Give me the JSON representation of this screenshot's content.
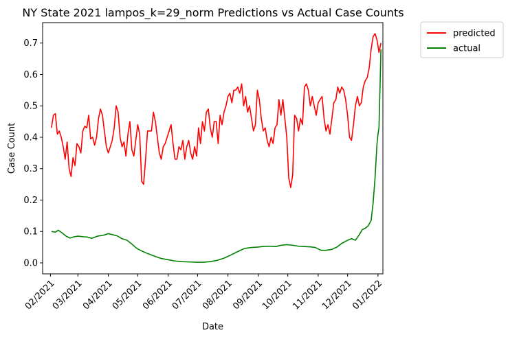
{
  "chart_data": {
    "type": "line",
    "title": "NY State 2021 lampos_k=29_norm Predictions vs Actual Case Counts",
    "xlabel": "Date",
    "ylabel": "Case Count",
    "x_ticks": [
      "02/2021",
      "03/2021",
      "04/2021",
      "05/2021",
      "06/2021",
      "07/2021",
      "08/2021",
      "09/2021",
      "10/2021",
      "11/2021",
      "12/2021",
      "01/2022"
    ],
    "y_ticks": [
      "0.0",
      "0.1",
      "0.2",
      "0.3",
      "0.4",
      "0.5",
      "0.6",
      "0.7"
    ],
    "xlim": [
      "2021-01-24",
      "2022-01-06"
    ],
    "ylim": [
      -0.035,
      0.765
    ],
    "grid": false,
    "legend_position": "outside top-right",
    "series": [
      {
        "name": "predicted",
        "color": "#ff0000",
        "points": [
          [
            "2021-02-02",
            0.43
          ],
          [
            "2021-02-04",
            0.47
          ],
          [
            "2021-02-06",
            0.475
          ],
          [
            "2021-02-08",
            0.41
          ],
          [
            "2021-02-10",
            0.42
          ],
          [
            "2021-02-12",
            0.4
          ],
          [
            "2021-02-14",
            0.37
          ],
          [
            "2021-02-16",
            0.33
          ],
          [
            "2021-02-18",
            0.385
          ],
          [
            "2021-02-20",
            0.3
          ],
          [
            "2021-02-22",
            0.275
          ],
          [
            "2021-02-24",
            0.335
          ],
          [
            "2021-02-26",
            0.31
          ],
          [
            "2021-02-28",
            0.38
          ],
          [
            "2021-03-02",
            0.37
          ],
          [
            "2021-03-04",
            0.35
          ],
          [
            "2021-03-06",
            0.42
          ],
          [
            "2021-03-08",
            0.435
          ],
          [
            "2021-03-10",
            0.43
          ],
          [
            "2021-03-12",
            0.47
          ],
          [
            "2021-03-14",
            0.395
          ],
          [
            "2021-03-16",
            0.4
          ],
          [
            "2021-03-18",
            0.375
          ],
          [
            "2021-03-20",
            0.4
          ],
          [
            "2021-03-22",
            0.46
          ],
          [
            "2021-03-24",
            0.49
          ],
          [
            "2021-03-26",
            0.47
          ],
          [
            "2021-03-28",
            0.42
          ],
          [
            "2021-03-30",
            0.37
          ],
          [
            "2021-04-01",
            0.35
          ],
          [
            "2021-04-03",
            0.37
          ],
          [
            "2021-04-05",
            0.39
          ],
          [
            "2021-04-07",
            0.43
          ],
          [
            "2021-04-09",
            0.5
          ],
          [
            "2021-04-11",
            0.48
          ],
          [
            "2021-04-13",
            0.4
          ],
          [
            "2021-04-15",
            0.37
          ],
          [
            "2021-04-17",
            0.385
          ],
          [
            "2021-04-19",
            0.34
          ],
          [
            "2021-04-21",
            0.41
          ],
          [
            "2021-04-23",
            0.45
          ],
          [
            "2021-04-25",
            0.36
          ],
          [
            "2021-04-27",
            0.34
          ],
          [
            "2021-04-29",
            0.39
          ],
          [
            "2021-05-01",
            0.44
          ],
          [
            "2021-05-03",
            0.41
          ],
          [
            "2021-05-05",
            0.26
          ],
          [
            "2021-05-07",
            0.25
          ],
          [
            "2021-05-09",
            0.33
          ],
          [
            "2021-05-11",
            0.42
          ],
          [
            "2021-05-13",
            0.42
          ],
          [
            "2021-05-15",
            0.42
          ],
          [
            "2021-05-17",
            0.48
          ],
          [
            "2021-05-19",
            0.45
          ],
          [
            "2021-05-21",
            0.4
          ],
          [
            "2021-05-23",
            0.35
          ],
          [
            "2021-05-25",
            0.33
          ],
          [
            "2021-05-27",
            0.37
          ],
          [
            "2021-05-29",
            0.38
          ],
          [
            "2021-05-31",
            0.4
          ],
          [
            "2021-06-02",
            0.42
          ],
          [
            "2021-06-04",
            0.44
          ],
          [
            "2021-06-06",
            0.38
          ],
          [
            "2021-06-08",
            0.33
          ],
          [
            "2021-06-10",
            0.33
          ],
          [
            "2021-06-12",
            0.37
          ],
          [
            "2021-06-14",
            0.36
          ],
          [
            "2021-06-16",
            0.39
          ],
          [
            "2021-06-18",
            0.33
          ],
          [
            "2021-06-20",
            0.37
          ],
          [
            "2021-06-22",
            0.39
          ],
          [
            "2021-06-24",
            0.35
          ],
          [
            "2021-06-26",
            0.33
          ],
          [
            "2021-06-28",
            0.37
          ],
          [
            "2021-06-30",
            0.34
          ],
          [
            "2021-07-02",
            0.43
          ],
          [
            "2021-07-04",
            0.38
          ],
          [
            "2021-07-06",
            0.45
          ],
          [
            "2021-07-08",
            0.42
          ],
          [
            "2021-07-10",
            0.48
          ],
          [
            "2021-07-12",
            0.49
          ],
          [
            "2021-07-14",
            0.43
          ],
          [
            "2021-07-16",
            0.4
          ],
          [
            "2021-07-18",
            0.45
          ],
          [
            "2021-07-20",
            0.45
          ],
          [
            "2021-07-22",
            0.38
          ],
          [
            "2021-07-24",
            0.47
          ],
          [
            "2021-07-26",
            0.44
          ],
          [
            "2021-07-28",
            0.48
          ],
          [
            "2021-07-30",
            0.5
          ],
          [
            "2021-08-01",
            0.53
          ],
          [
            "2021-08-03",
            0.54
          ],
          [
            "2021-08-05",
            0.51
          ],
          [
            "2021-08-07",
            0.55
          ],
          [
            "2021-08-09",
            0.55
          ],
          [
            "2021-08-11",
            0.56
          ],
          [
            "2021-08-13",
            0.54
          ],
          [
            "2021-08-15",
            0.57
          ],
          [
            "2021-08-17",
            0.5
          ],
          [
            "2021-08-19",
            0.53
          ],
          [
            "2021-08-21",
            0.48
          ],
          [
            "2021-08-23",
            0.5
          ],
          [
            "2021-08-25",
            0.46
          ],
          [
            "2021-08-27",
            0.42
          ],
          [
            "2021-08-29",
            0.44
          ],
          [
            "2021-08-31",
            0.55
          ],
          [
            "2021-09-02",
            0.52
          ],
          [
            "2021-09-04",
            0.46
          ],
          [
            "2021-09-06",
            0.42
          ],
          [
            "2021-09-08",
            0.43
          ],
          [
            "2021-09-10",
            0.39
          ],
          [
            "2021-09-12",
            0.37
          ],
          [
            "2021-09-14",
            0.4
          ],
          [
            "2021-09-16",
            0.38
          ],
          [
            "2021-09-18",
            0.43
          ],
          [
            "2021-09-20",
            0.44
          ],
          [
            "2021-09-22",
            0.52
          ],
          [
            "2021-09-24",
            0.47
          ],
          [
            "2021-09-26",
            0.52
          ],
          [
            "2021-09-28",
            0.46
          ],
          [
            "2021-09-30",
            0.4
          ],
          [
            "2021-10-02",
            0.27
          ],
          [
            "2021-10-04",
            0.24
          ],
          [
            "2021-10-06",
            0.28
          ],
          [
            "2021-10-08",
            0.47
          ],
          [
            "2021-10-10",
            0.46
          ],
          [
            "2021-10-12",
            0.42
          ],
          [
            "2021-10-14",
            0.46
          ],
          [
            "2021-10-16",
            0.44
          ],
          [
            "2021-10-18",
            0.56
          ],
          [
            "2021-10-20",
            0.57
          ],
          [
            "2021-10-22",
            0.55
          ],
          [
            "2021-10-24",
            0.5
          ],
          [
            "2021-10-26",
            0.53
          ],
          [
            "2021-10-28",
            0.5
          ],
          [
            "2021-10-30",
            0.47
          ],
          [
            "2021-11-01",
            0.51
          ],
          [
            "2021-11-03",
            0.52
          ],
          [
            "2021-11-05",
            0.53
          ],
          [
            "2021-11-07",
            0.46
          ],
          [
            "2021-11-09",
            0.42
          ],
          [
            "2021-11-11",
            0.44
          ],
          [
            "2021-11-13",
            0.41
          ],
          [
            "2021-11-15",
            0.46
          ],
          [
            "2021-11-17",
            0.51
          ],
          [
            "2021-11-19",
            0.52
          ],
          [
            "2021-11-21",
            0.56
          ],
          [
            "2021-11-23",
            0.54
          ],
          [
            "2021-11-25",
            0.56
          ],
          [
            "2021-11-27",
            0.55
          ],
          [
            "2021-11-29",
            0.52
          ],
          [
            "2021-12-01",
            0.47
          ],
          [
            "2021-12-03",
            0.4
          ],
          [
            "2021-12-05",
            0.39
          ],
          [
            "2021-12-07",
            0.44
          ],
          [
            "2021-12-09",
            0.5
          ],
          [
            "2021-12-11",
            0.53
          ],
          [
            "2021-12-13",
            0.5
          ],
          [
            "2021-12-15",
            0.51
          ],
          [
            "2021-12-17",
            0.56
          ],
          [
            "2021-12-19",
            0.58
          ],
          [
            "2021-12-21",
            0.59
          ],
          [
            "2021-12-23",
            0.62
          ],
          [
            "2021-12-25",
            0.68
          ],
          [
            "2021-12-27",
            0.72
          ],
          [
            "2021-12-29",
            0.73
          ],
          [
            "2021-12-31",
            0.71
          ],
          [
            "2022-01-02",
            0.67
          ],
          [
            "2022-01-04",
            0.7
          ]
        ]
      },
      {
        "name": "actual",
        "color": "#008000",
        "points": [
          [
            "2021-02-02",
            0.1
          ],
          [
            "2021-02-06",
            0.098
          ],
          [
            "2021-02-09",
            0.104
          ],
          [
            "2021-02-13",
            0.095
          ],
          [
            "2021-02-17",
            0.085
          ],
          [
            "2021-02-21",
            0.079
          ],
          [
            "2021-02-25",
            0.083
          ],
          [
            "2021-03-01",
            0.085
          ],
          [
            "2021-03-07",
            0.083
          ],
          [
            "2021-03-11",
            0.082
          ],
          [
            "2021-03-15",
            0.078
          ],
          [
            "2021-03-21",
            0.085
          ],
          [
            "2021-03-27",
            0.088
          ],
          [
            "2021-04-01",
            0.093
          ],
          [
            "2021-04-05",
            0.09
          ],
          [
            "2021-04-10",
            0.086
          ],
          [
            "2021-04-15",
            0.077
          ],
          [
            "2021-04-20",
            0.072
          ],
          [
            "2021-04-25",
            0.06
          ],
          [
            "2021-04-30",
            0.046
          ],
          [
            "2021-05-05",
            0.038
          ],
          [
            "2021-05-10",
            0.031
          ],
          [
            "2021-05-15",
            0.025
          ],
          [
            "2021-05-20",
            0.019
          ],
          [
            "2021-05-25",
            0.014
          ],
          [
            "2021-06-01",
            0.01
          ],
          [
            "2021-06-08",
            0.006
          ],
          [
            "2021-06-15",
            0.004
          ],
          [
            "2021-06-22",
            0.003
          ],
          [
            "2021-06-30",
            0.002
          ],
          [
            "2021-07-07",
            0.002
          ],
          [
            "2021-07-14",
            0.004
          ],
          [
            "2021-07-21",
            0.008
          ],
          [
            "2021-07-28",
            0.015
          ],
          [
            "2021-08-04",
            0.025
          ],
          [
            "2021-08-11",
            0.036
          ],
          [
            "2021-08-18",
            0.046
          ],
          [
            "2021-08-25",
            0.049
          ],
          [
            "2021-08-31",
            0.05
          ],
          [
            "2021-09-05",
            0.052
          ],
          [
            "2021-09-12",
            0.053
          ],
          [
            "2021-09-19",
            0.052
          ],
          [
            "2021-09-24",
            0.056
          ],
          [
            "2021-09-30",
            0.058
          ],
          [
            "2021-10-06",
            0.056
          ],
          [
            "2021-10-12",
            0.053
          ],
          [
            "2021-10-18",
            0.052
          ],
          [
            "2021-10-24",
            0.051
          ],
          [
            "2021-10-29",
            0.049
          ],
          [
            "2021-11-04",
            0.04
          ],
          [
            "2021-11-09",
            0.04
          ],
          [
            "2021-11-15",
            0.043
          ],
          [
            "2021-11-20",
            0.05
          ],
          [
            "2021-11-25",
            0.062
          ],
          [
            "2021-12-01",
            0.072
          ],
          [
            "2021-12-05",
            0.077
          ],
          [
            "2021-12-09",
            0.072
          ],
          [
            "2021-12-13",
            0.09
          ],
          [
            "2021-12-16",
            0.106
          ],
          [
            "2021-12-19",
            0.11
          ],
          [
            "2021-12-22",
            0.118
          ],
          [
            "2021-12-25",
            0.135
          ],
          [
            "2021-12-27",
            0.19
          ],
          [
            "2021-12-29",
            0.27
          ],
          [
            "2021-12-31",
            0.38
          ],
          [
            "2022-01-01",
            0.41
          ],
          [
            "2022-01-02",
            0.43
          ],
          [
            "2022-01-03",
            0.55
          ],
          [
            "2022-01-04",
            0.68
          ]
        ]
      }
    ]
  }
}
